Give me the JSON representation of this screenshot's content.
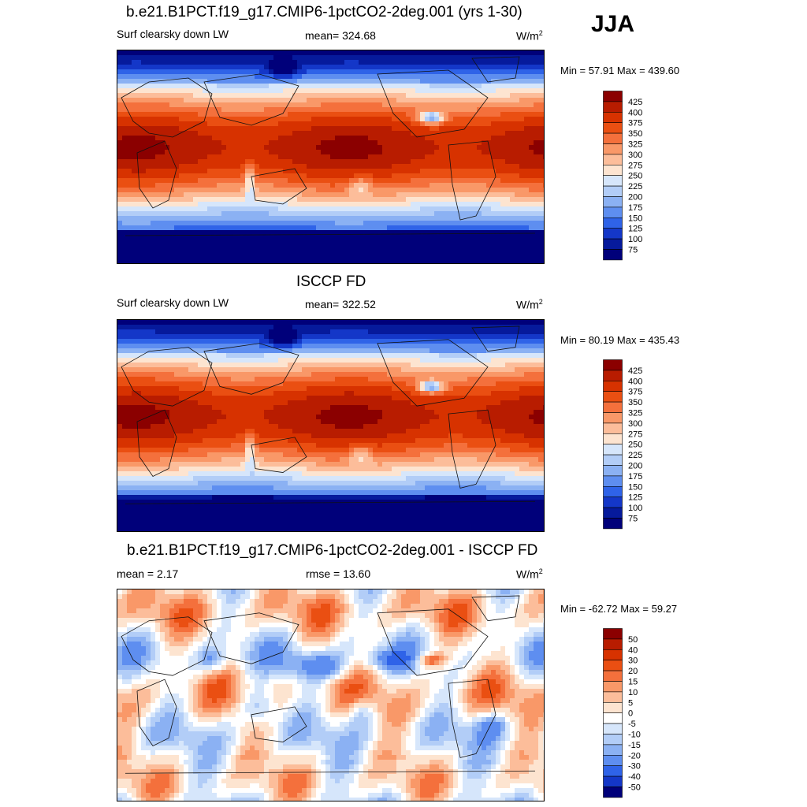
{
  "season": "JJA",
  "panels": [
    {
      "title": "b.e21.B1PCT.f19_g17.CMIP6-1pctCO2-2deg.001 (yrs 1-30)",
      "left": "Surf clearsky down LW",
      "center": "mean= 324.68",
      "units": "W/m",
      "units_sup": "2",
      "minmax": "Min =  57.91 Max = 439.60",
      "levels": [
        "425",
        "400",
        "375",
        "350",
        "325",
        "300",
        "275",
        "250",
        "225",
        "200",
        "175",
        "150",
        "125",
        "100",
        "75"
      ],
      "colors": [
        "#8b0000",
        "#b81c00",
        "#d73200",
        "#ea4f12",
        "#f4703c",
        "#f99868",
        "#fcbd9a",
        "#fde4d0",
        "#d6e6fb",
        "#b2cdf7",
        "#8bb1f3",
        "#5e8ef0",
        "#2f63e8",
        "#1437c8",
        "#061a9c",
        "#00007a"
      ],
      "palette": "warm",
      "chart_data": {
        "type": "heatmap",
        "variable": "Surf clearsky down LW",
        "units": "W/m2",
        "mean": 324.68,
        "min": 57.91,
        "max": 439.6,
        "contour_levels": [
          75,
          100,
          125,
          150,
          175,
          200,
          225,
          250,
          275,
          300,
          325,
          350,
          375,
          400,
          425
        ]
      }
    },
    {
      "title": "ISCCP FD",
      "left": "Surf clearsky down LW",
      "center": "mean= 322.52",
      "units": "W/m",
      "units_sup": "2",
      "minmax": "Min =  80.19 Max = 435.43",
      "levels": [
        "425",
        "400",
        "375",
        "350",
        "325",
        "300",
        "275",
        "250",
        "225",
        "200",
        "175",
        "150",
        "125",
        "100",
        "75"
      ],
      "colors": [
        "#8b0000",
        "#b81c00",
        "#d73200",
        "#ea4f12",
        "#f4703c",
        "#f99868",
        "#fcbd9a",
        "#fde4d0",
        "#d6e6fb",
        "#b2cdf7",
        "#8bb1f3",
        "#5e8ef0",
        "#2f63e8",
        "#1437c8",
        "#061a9c",
        "#00007a"
      ],
      "palette": "warm",
      "chart_data": {
        "type": "heatmap",
        "variable": "Surf clearsky down LW",
        "units": "W/m2",
        "mean": 322.52,
        "min": 80.19,
        "max": 435.43,
        "contour_levels": [
          75,
          100,
          125,
          150,
          175,
          200,
          225,
          250,
          275,
          300,
          325,
          350,
          375,
          400,
          425
        ]
      }
    },
    {
      "title": "b.e21.B1PCT.f19_g17.CMIP6-1pctCO2-2deg.001 - ISCCP FD",
      "left": "mean =   2.17",
      "center": "rmse =  13.60",
      "units": "W/m",
      "units_sup": "2",
      "minmax": "Min = -62.72 Max =  59.27",
      "levels": [
        "50",
        "40",
        "30",
        "20",
        "15",
        "10",
        "5",
        "0",
        "-5",
        "-10",
        "-15",
        "-20",
        "-30",
        "-40",
        "-50"
      ],
      "colors": [
        "#8b0000",
        "#b81c00",
        "#d73200",
        "#ea4f12",
        "#f4703c",
        "#f99868",
        "#fcbd9a",
        "#fde4d0",
        "#ffffff",
        "#d6e6fb",
        "#b2cdf7",
        "#8bb1f3",
        "#5e8ef0",
        "#2f63e8",
        "#1437c8",
        "#00007a"
      ],
      "palette": "diff",
      "chart_data": {
        "type": "heatmap",
        "variable": "difference",
        "units": "W/m2",
        "mean": 2.17,
        "rmse": 13.6,
        "min": -62.72,
        "max": 59.27,
        "contour_levels": [
          -50,
          -40,
          -30,
          -20,
          -15,
          -10,
          -5,
          0,
          5,
          10,
          15,
          20,
          30,
          40,
          50
        ]
      }
    }
  ]
}
